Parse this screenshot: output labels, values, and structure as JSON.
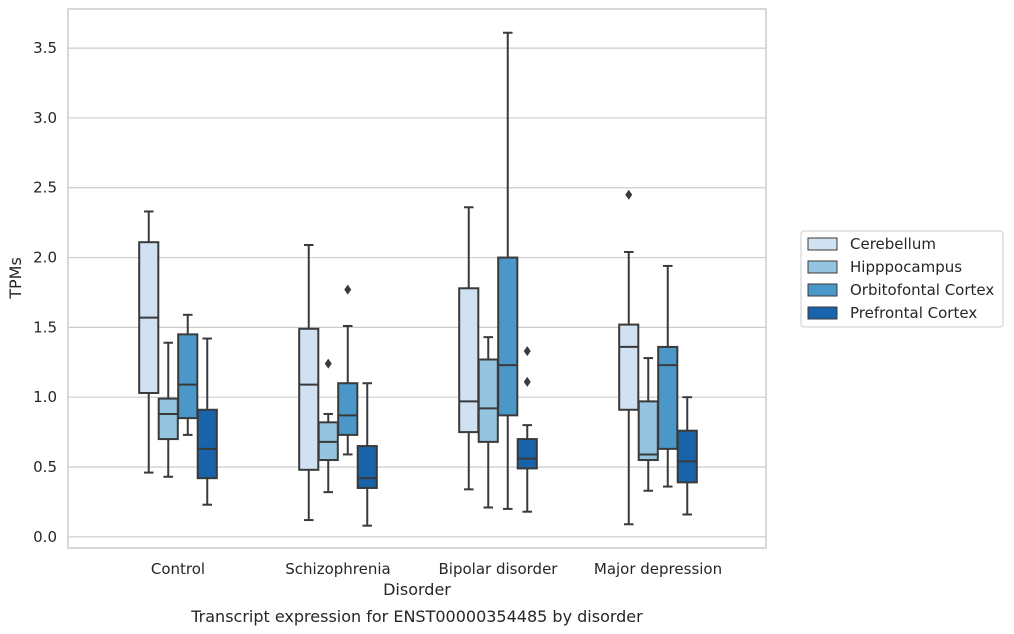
{
  "caption": "Transcript expression for ENST00000354485 by disorder",
  "colors": {
    "box_edge": "#3a3a3a",
    "grid": "#cccccc",
    "spine": "#cccccc",
    "background": "#ffffff"
  },
  "chart_data": {
    "type": "box",
    "xlabel": "Disorder",
    "ylabel": "TPMs",
    "ylim": [
      -0.08,
      3.78
    ],
    "yticks": [
      0.0,
      0.5,
      1.0,
      1.5,
      2.0,
      2.5,
      3.0,
      3.5
    ],
    "ytick_labels": [
      "0.0",
      "0.5",
      "1.0",
      "1.5",
      "2.0",
      "2.5",
      "3.0",
      "3.5"
    ],
    "grid": "horizontal",
    "legend_position": "right",
    "categories": [
      "Control",
      "Schizophrenia",
      "Bipolar disorder",
      "Major depression"
    ],
    "series": [
      {
        "name": "Cerebellum",
        "color": "#d0e1f2",
        "boxes": [
          {
            "whislo": 0.46,
            "q1": 1.03,
            "med": 1.57,
            "q3": 2.11,
            "whishi": 2.33,
            "fliers": []
          },
          {
            "whislo": 0.12,
            "q1": 0.48,
            "med": 1.09,
            "q3": 1.49,
            "whishi": 2.09,
            "fliers": []
          },
          {
            "whislo": 0.34,
            "q1": 0.75,
            "med": 0.97,
            "q3": 1.78,
            "whishi": 2.36,
            "fliers": []
          },
          {
            "whislo": 0.09,
            "q1": 0.91,
            "med": 1.36,
            "q3": 1.52,
            "whishi": 2.04,
            "fliers": [
              2.45
            ]
          }
        ]
      },
      {
        "name": "Hipppocampus",
        "color": "#94c4df",
        "boxes": [
          {
            "whislo": 0.43,
            "q1": 0.7,
            "med": 0.88,
            "q3": 0.99,
            "whishi": 1.39,
            "fliers": []
          },
          {
            "whislo": 0.32,
            "q1": 0.55,
            "med": 0.68,
            "q3": 0.82,
            "whishi": 0.88,
            "fliers": [
              1.24
            ]
          },
          {
            "whislo": 0.21,
            "q1": 0.68,
            "med": 0.92,
            "q3": 1.27,
            "whishi": 1.43,
            "fliers": []
          },
          {
            "whislo": 0.33,
            "q1": 0.55,
            "med": 0.59,
            "q3": 0.97,
            "whishi": 1.28,
            "fliers": []
          }
        ]
      },
      {
        "name": "Orbitofontal Cortex",
        "color": "#4a98c9",
        "boxes": [
          {
            "whislo": 0.73,
            "q1": 0.85,
            "med": 1.09,
            "q3": 1.45,
            "whishi": 1.59,
            "fliers": []
          },
          {
            "whislo": 0.59,
            "q1": 0.73,
            "med": 0.87,
            "q3": 1.1,
            "whishi": 1.51,
            "fliers": [
              1.77
            ]
          },
          {
            "whislo": 0.2,
            "q1": 0.87,
            "med": 1.23,
            "q3": 2.0,
            "whishi": 3.61,
            "fliers": []
          },
          {
            "whislo": 0.36,
            "q1": 0.63,
            "med": 1.23,
            "q3": 1.36,
            "whishi": 1.94,
            "fliers": []
          }
        ]
      },
      {
        "name": "Prefrontal Cortex",
        "color": "#1764ab",
        "boxes": [
          {
            "whislo": 0.23,
            "q1": 0.42,
            "med": 0.63,
            "q3": 0.91,
            "whishi": 1.42,
            "fliers": []
          },
          {
            "whislo": 0.08,
            "q1": 0.35,
            "med": 0.42,
            "q3": 0.65,
            "whishi": 1.1,
            "fliers": []
          },
          {
            "whislo": 0.18,
            "q1": 0.49,
            "med": 0.56,
            "q3": 0.7,
            "whishi": 0.8,
            "fliers": [
              1.11,
              1.33
            ]
          },
          {
            "whislo": 0.16,
            "q1": 0.39,
            "med": 0.54,
            "q3": 0.76,
            "whishi": 1.0,
            "fliers": []
          }
        ]
      }
    ]
  }
}
